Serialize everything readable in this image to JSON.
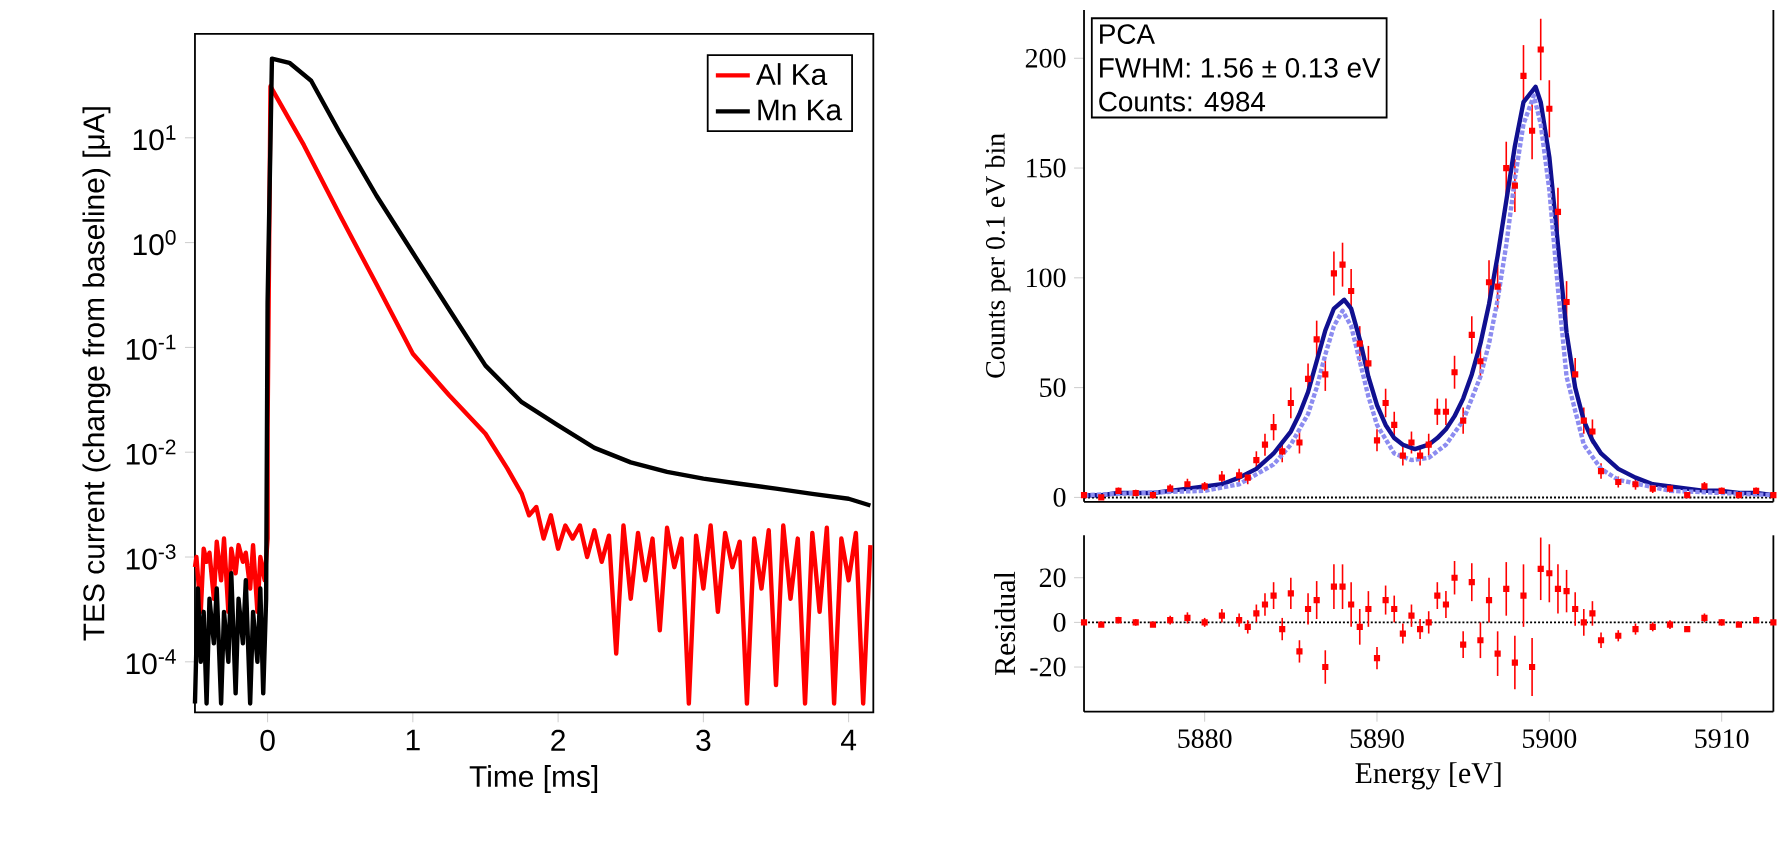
{
  "chart_data": [
    {
      "type": "line",
      "xlabel": "Time [ms]",
      "ylabel": "TES current (change from baseline) [μA]",
      "xlim": [
        -0.5,
        4.17
      ],
      "xticks": [
        0,
        1,
        2,
        3,
        4
      ],
      "ylim": [
        3.3e-05,
        98
      ],
      "yticks": [
        {
          "value": 0.0001,
          "label": "10$^{-4}$"
        },
        {
          "value": 0.001,
          "label": "10$^{-3}$"
        },
        {
          "value": 0.01,
          "label": "10$^{-2}$"
        },
        {
          "value": 0.1,
          "label": "10$^{-1}$"
        },
        {
          "value": 1,
          "label": "10$^{0}$"
        },
        {
          "value": 10,
          "label": "10$^{1}$"
        }
      ],
      "log": true,
      "legend": "top right",
      "series": [
        {
          "name": "Al Ka",
          "color": "#ff0000",
          "x": [
            -0.5,
            -0.49,
            -0.46,
            -0.44,
            -0.42,
            -0.4,
            -0.37,
            -0.35,
            -0.32,
            -0.3,
            -0.27,
            -0.25,
            -0.22,
            -0.2,
            -0.17,
            -0.15,
            -0.12,
            -0.1,
            -0.07,
            -0.05,
            -0.02,
            0,
            0,
            0.02,
            0.25,
            0.5,
            0.75,
            1.0,
            1.25,
            1.5,
            1.65,
            1.75,
            1.8,
            1.85,
            1.9,
            1.95,
            2.0,
            2.05,
            2.1,
            2.15,
            2.2,
            2.25,
            2.3,
            2.35,
            2.4,
            2.45,
            2.5,
            2.55,
            2.6,
            2.65,
            2.7,
            2.75,
            2.8,
            2.85,
            2.9,
            2.95,
            3.0,
            3.05,
            3.1,
            3.15,
            3.2,
            3.25,
            3.3,
            3.35,
            3.4,
            3.45,
            3.5,
            3.55,
            3.6,
            3.65,
            3.7,
            3.75,
            3.8,
            3.85,
            3.9,
            3.95,
            4.0,
            4.05,
            4.1,
            4.15
          ],
          "values": [
            0.0008,
            0.001,
            0.0003,
            0.0012,
            0.0009,
            0.0011,
            0.0004,
            0.0014,
            0.0006,
            0.0015,
            0.0003,
            0.0012,
            0.0007,
            0.0013,
            0.0009,
            0.0011,
            0.0005,
            0.0013,
            0.0003,
            0.001,
            0.0006,
            0.0015,
            0.017,
            31,
            8.5,
            1.8,
            0.4,
            0.087,
            0.035,
            0.015,
            0.007,
            0.004,
            0.0025,
            0.003,
            0.0015,
            0.0025,
            0.0012,
            0.002,
            0.0015,
            0.002,
            0.001,
            0.0018,
            0.0009,
            0.0016,
            0.00012,
            0.002,
            0.0004,
            0.0017,
            0.0006,
            0.0015,
            0.0002,
            0.0019,
            0.0008,
            0.0015,
            4e-05,
            0.0016,
            0.0005,
            0.002,
            0.0003,
            0.0017,
            0.0008,
            0.0014,
            4e-05,
            0.0015,
            0.0005,
            0.0018,
            6e-05,
            0.002,
            0.0004,
            0.0015,
            4e-05,
            0.0017,
            0.0003,
            0.0019,
            4e-05,
            0.0015,
            0.0006,
            0.0017,
            4e-05,
            0.0013
          ]
        },
        {
          "name": "Mn Ka",
          "color": "#000000",
          "x": [
            -0.5,
            -0.48,
            -0.46,
            -0.44,
            -0.42,
            -0.4,
            -0.37,
            -0.35,
            -0.32,
            -0.3,
            -0.27,
            -0.25,
            -0.22,
            -0.2,
            -0.17,
            -0.15,
            -0.12,
            -0.1,
            -0.07,
            -0.05,
            -0.03,
            -0.01,
            0,
            0.03,
            0.15,
            0.3,
            0.5,
            0.75,
            1.0,
            1.25,
            1.5,
            1.75,
            2.0,
            2.25,
            2.5,
            2.75,
            3.0,
            3.25,
            3.5,
            3.75,
            4.0,
            4.15
          ],
          "values": [
            4e-05,
            0.0005,
            0.0001,
            0.0003,
            4e-05,
            0.0004,
            0.00015,
            0.0005,
            4e-05,
            0.0003,
            0.0001,
            0.0007,
            5e-05,
            0.0004,
            0.00015,
            0.0006,
            4e-05,
            0.0003,
            0.0001,
            0.0005,
            5e-05,
            0.0004,
            0.27,
            57,
            52,
            35,
            11,
            2.8,
            0.8,
            0.23,
            0.067,
            0.03,
            0.018,
            0.011,
            0.008,
            0.0065,
            0.0056,
            0.005,
            0.0045,
            0.004,
            0.0036,
            0.0031
          ]
        }
      ]
    },
    {
      "type": "scatter",
      "ylabel": "Counts per 0.1 eV bin",
      "xlim": [
        5873,
        5913
      ],
      "ylim": [
        -2,
        222
      ],
      "yticks": [
        0,
        50,
        100,
        150,
        200
      ],
      "tick_labels": "y",
      "marker": "square",
      "annotations": [
        "PCA",
        "FWHM: 1.56 ± 0.13 eV",
        "Counts: 4984"
      ],
      "ref_lines": [
        {
          "axis": "y",
          "value": 0,
          "color": "#000000",
          "line_style": "dotted"
        }
      ],
      "series": [
        {
          "type": "scatter",
          "color": "#ff0000",
          "x": [
            5873,
            5874,
            5875,
            5876,
            5877,
            5878,
            5879,
            5880,
            5881,
            5882,
            5882.5,
            5883,
            5883.5,
            5884,
            5884.5,
            5885,
            5885.5,
            5886,
            5886.5,
            5887,
            5887.5,
            5888,
            5888.5,
            5889,
            5889.5,
            5890,
            5890.5,
            5891,
            5891.5,
            5892,
            5892.5,
            5893,
            5893.5,
            5894,
            5894.5,
            5895,
            5895.5,
            5896,
            5896.5,
            5897,
            5897.5,
            5898,
            5898.5,
            5899,
            5899.5,
            5900,
            5900.5,
            5901,
            5901.5,
            5902,
            5902.5,
            5903,
            5904,
            5905,
            5906,
            5907,
            5908,
            5909,
            5910,
            5911,
            5912,
            5913
          ],
          "values": [
            1,
            0,
            3,
            2,
            1,
            4,
            6,
            5,
            9,
            10,
            9,
            17,
            24,
            32,
            21,
            43,
            25,
            54,
            72,
            56,
            102,
            106,
            94,
            70,
            61,
            26,
            43,
            33,
            19,
            25,
            19,
            24,
            39,
            39,
            57,
            35,
            74,
            62,
            98,
            96,
            150,
            142,
            192,
            167,
            204,
            177,
            130,
            89,
            56,
            35,
            30,
            12,
            7,
            6,
            4,
            4,
            1,
            5,
            3,
            1,
            3,
            1
          ],
          "errors": [
            1,
            1,
            1.5,
            1.5,
            1,
            2,
            2.5,
            2,
            3,
            3,
            3,
            4,
            5,
            6,
            5,
            7,
            5,
            7,
            8.5,
            7.5,
            10,
            10,
            10,
            8,
            8,
            5,
            6.5,
            6,
            4.5,
            5,
            4.5,
            5,
            6,
            6,
            7.5,
            6,
            8.5,
            8,
            10,
            10,
            12,
            12,
            14,
            13,
            14,
            13,
            11,
            9.5,
            7.5,
            6,
            5.5,
            3.5,
            2.5,
            2.5,
            2,
            2,
            1,
            2,
            1.5,
            1,
            1.5,
            1
          ]
        },
        {
          "type": "line",
          "marker": "none",
          "line_style": "solid",
          "color": "#101090",
          "x": [
            5873,
            5874,
            5875,
            5876,
            5877,
            5878,
            5879,
            5880,
            5881,
            5882,
            5883,
            5884,
            5885,
            5885.5,
            5886,
            5886.5,
            5887,
            5887.5,
            5888.1,
            5888.5,
            5889,
            5889.5,
            5890,
            5890.5,
            5891,
            5891.5,
            5892.2,
            5893,
            5893.5,
            5894,
            5894.5,
            5895,
            5895.5,
            5896,
            5896.5,
            5897,
            5897.5,
            5898,
            5898.5,
            5899.2,
            5899.5,
            5900,
            5900.5,
            5901,
            5901.5,
            5902,
            5902.5,
            5903,
            5904,
            5905,
            5906,
            5907,
            5908,
            5909,
            5910,
            5911,
            5912,
            5913
          ],
          "values": [
            1,
            1,
            2,
            2,
            2,
            3,
            4,
            5,
            6,
            9,
            13,
            20,
            30,
            38,
            48,
            62,
            76,
            86,
            90,
            86,
            72,
            55,
            42,
            33,
            27,
            24,
            22,
            24,
            27,
            31,
            37,
            45,
            56,
            70,
            88,
            110,
            135,
            160,
            180,
            187,
            180,
            155,
            115,
            75,
            50,
            35,
            26,
            20,
            13,
            9,
            6,
            5,
            4,
            3,
            3,
            2,
            2,
            1
          ]
        },
        {
          "type": "line",
          "marker": "none",
          "line_style": "dotted",
          "color": "#8c8cf0",
          "x": [
            5873,
            5876,
            5880,
            5882,
            5884,
            5885,
            5886,
            5886.5,
            5887,
            5887.5,
            5888,
            5888.5,
            5889,
            5889.5,
            5890,
            5891,
            5892,
            5893,
            5894,
            5895,
            5896,
            5896.5,
            5897,
            5897.5,
            5898,
            5898.5,
            5899.1,
            5899.5,
            5900,
            5900.5,
            5901,
            5902,
            5903,
            5904,
            5907,
            5910,
            5913
          ],
          "values": [
            1,
            2,
            3,
            6,
            15,
            24,
            38,
            50,
            65,
            78,
            85,
            78,
            62,
            46,
            33,
            20,
            17,
            18,
            24,
            35,
            55,
            70,
            90,
            115,
            145,
            170,
            183,
            170,
            140,
            95,
            55,
            24,
            13,
            8,
            3,
            2,
            1
          ]
        }
      ]
    },
    {
      "type": "scatter",
      "xlabel": "Energy [eV]",
      "ylabel": "Residual",
      "xlim": [
        5873,
        5913
      ],
      "xticks": [
        5880,
        5890,
        5900,
        5910
      ],
      "ylim": [
        -40,
        39
      ],
      "yticks": [
        -20,
        0,
        20
      ],
      "marker": "square",
      "color": "#ff0000",
      "ref_lines": [
        {
          "axis": "y",
          "value": 0,
          "color": "#000000",
          "line_style": "dotted"
        }
      ],
      "x": [
        5873,
        5874,
        5875,
        5876,
        5877,
        5878,
        5879,
        5880,
        5881,
        5882,
        5882.5,
        5883,
        5883.5,
        5884,
        5884.5,
        5885,
        5885.5,
        5886,
        5886.5,
        5887,
        5887.5,
        5888,
        5888.5,
        5889,
        5889.5,
        5890,
        5890.5,
        5891,
        5891.5,
        5892,
        5892.5,
        5893,
        5893.5,
        5894,
        5894.5,
        5895,
        5895.5,
        5896,
        5896.5,
        5897,
        5897.5,
        5898,
        5898.5,
        5899,
        5899.5,
        5900,
        5900.5,
        5901,
        5901.5,
        5902,
        5902.5,
        5903,
        5904,
        5905,
        5906,
        5907,
        5908,
        5909,
        5910,
        5911,
        5912,
        5913
      ],
      "values": [
        0,
        -1,
        1,
        0,
        -1,
        1,
        2,
        0,
        3,
        1,
        -2,
        4,
        8,
        12,
        -3,
        13,
        -13,
        6,
        10,
        -20,
        16,
        16,
        8,
        -2,
        6,
        -16,
        10,
        6,
        -5,
        3,
        -3,
        0,
        12,
        8,
        20,
        -10,
        18,
        -8,
        10,
        -14,
        15,
        -18,
        12,
        -20,
        24,
        22,
        15,
        14,
        6,
        0,
        4,
        -8,
        -6,
        -3,
        -2,
        -1,
        -3,
        2,
        0,
        -1,
        1,
        0
      ],
      "errors": [
        1,
        1,
        1.5,
        1.5,
        1,
        2,
        2.5,
        2,
        3,
        3,
        3,
        4,
        5,
        6,
        5,
        7,
        5,
        7,
        8.5,
        7.5,
        10,
        10,
        10,
        8,
        8,
        5,
        6.5,
        6,
        4.5,
        5,
        4.5,
        5,
        6,
        6,
        7.5,
        6,
        8.5,
        8,
        10,
        10,
        12,
        12,
        14,
        13,
        14,
        13,
        11,
        9.5,
        7.5,
        6,
        5.5,
        3.5,
        2.5,
        2.5,
        2,
        2,
        1,
        2,
        1.5,
        1,
        1.5,
        1
      ]
    }
  ]
}
